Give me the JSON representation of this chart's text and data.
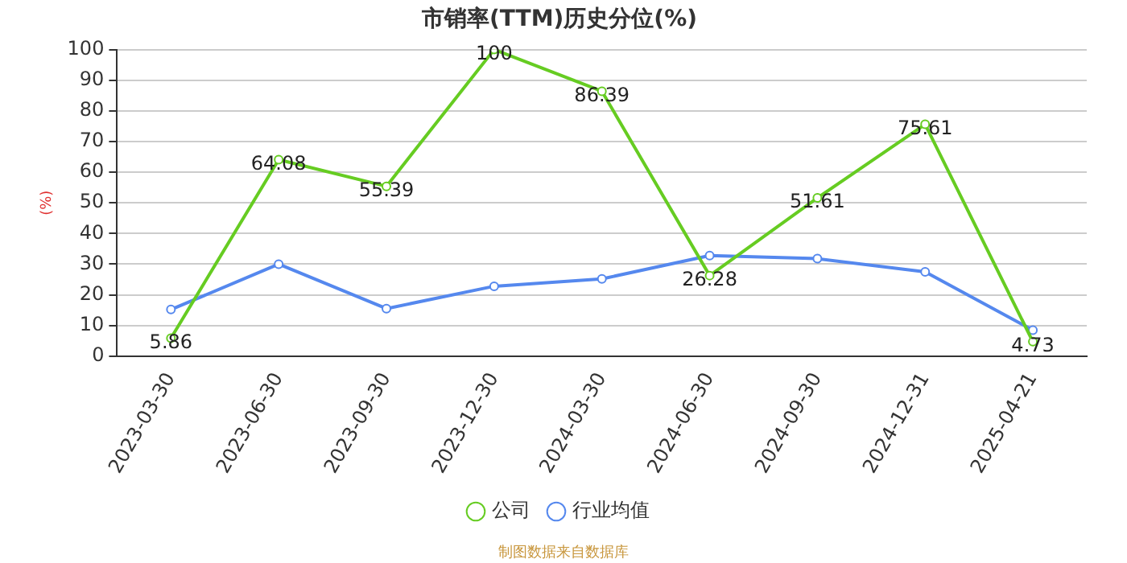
{
  "chart_data": {
    "type": "line",
    "title": "市销率(TTM)历史分位(%)",
    "ylabel": "(%)",
    "categories": [
      "2023-03-30",
      "2023-06-30",
      "2023-09-30",
      "2023-12-30",
      "2024-03-30",
      "2024-06-30",
      "2024-09-30",
      "2024-12-31",
      "2025-04-21"
    ],
    "series": [
      {
        "name": "公司",
        "color": "#66cc22",
        "values": [
          5.86,
          64.08,
          55.39,
          100,
          86.39,
          26.28,
          51.61,
          75.61,
          4.73
        ],
        "value_labels": [
          "5.86",
          "64.08",
          "55.39",
          "100",
          "86.39",
          "26.28",
          "51.61",
          "75.61",
          "4.73"
        ]
      },
      {
        "name": "行业均值",
        "color": "#5588ee",
        "values": [
          15.2,
          30,
          15.5,
          22.8,
          25.2,
          32.8,
          31.8,
          27.5,
          8.5
        ]
      }
    ],
    "ylim": [
      0,
      100
    ],
    "yticks": [
      0,
      10,
      20,
      30,
      40,
      50,
      60,
      70,
      80,
      90,
      100
    ],
    "grid": "y",
    "legend": "bottom",
    "marker": "circle",
    "line_style": "solid",
    "annotations": [
      "制图数据来自数据库"
    ]
  }
}
